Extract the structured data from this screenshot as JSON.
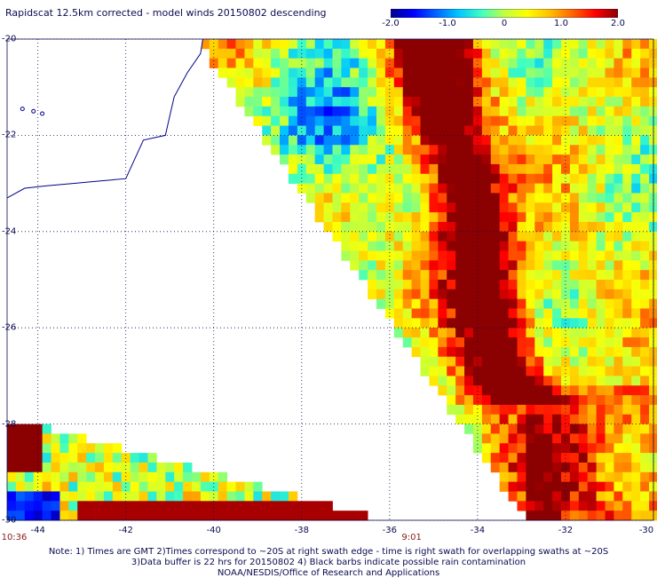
{
  "title": "Rapidscat 12.5km corrected - model winds 20150802 descending",
  "colorbar": {
    "tick_labels": [
      "-2.0",
      "-1.0",
      "0",
      "1.0",
      "2.0"
    ],
    "tick_values": [
      -2.0,
      -1.0,
      0,
      1.0,
      2.0
    ],
    "range": [
      -2.0,
      2.0
    ],
    "colors": [
      "#00008b",
      "#0000ff",
      "#0064ff",
      "#00c8ff",
      "#40ffc0",
      "#c0ff40",
      "#ffff00",
      "#ffc000",
      "#ff6400",
      "#ff0000",
      "#8b0000"
    ]
  },
  "map": {
    "lon_range": [
      -44.7,
      -30.0
    ],
    "lat_range": [
      -30.0,
      -20.0
    ],
    "lat_labels": [
      "-20",
      "-22",
      "-24",
      "-26",
      "-28",
      "-30"
    ],
    "lat_values": [
      -20,
      -22,
      -24,
      -26,
      -28,
      -30
    ],
    "lon_labels": [
      "-44",
      "-42",
      "-40",
      "-38",
      "-36",
      "-34",
      "-32",
      "-30"
    ],
    "lon_values": [
      -44,
      -42,
      -40,
      -38,
      -36,
      -34,
      -32,
      -30
    ],
    "grid": "dotted",
    "land_color": "#ffffff",
    "coast_color": "#00008b"
  },
  "swath_times": [
    {
      "label": "10:36",
      "lon": -44.6
    },
    {
      "label": "9:01",
      "lon": -35.5
    }
  ],
  "notes": [
    "Note: 1) Times are GMT 2)Times correspond to ~20S at right swath edge - time is right swath for overlapping swaths at ~20S",
    "3)Data buffer is 22 hrs for 20150802 4) Black barbs indicate possible rain contamination",
    "NOAA/NESDIS/Office of Research and Applications"
  ]
}
